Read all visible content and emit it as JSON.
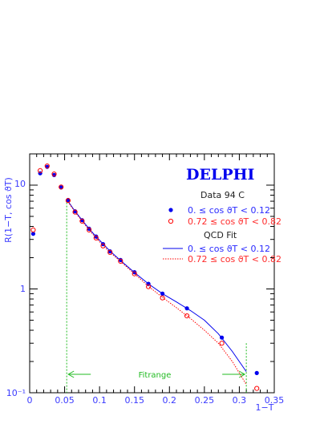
{
  "chart_data": {
    "type": "scatter",
    "title": "DELPHI",
    "xlabel": "1−T",
    "ylabel": "R(1−T, cos ϑT)",
    "xlim": [
      0,
      0.35
    ],
    "ylim": [
      0.1,
      20
    ],
    "y_scale": "log",
    "x_ticks": [
      "0",
      "0.05",
      "0.1",
      "0.15",
      "0.2",
      "0.25",
      "0.3",
      "0.35"
    ],
    "y_tick_labels": [
      "10⁻¹",
      "1",
      "10"
    ],
    "legend": {
      "data_heading": "Data 94 C",
      "fit_heading": "QCD Fit",
      "blue_label": "0.  ≤ cos ϑT < 0.12",
      "red_label": "0.72 ≤ cos ϑT < 0.82"
    },
    "fit_range": {
      "label": "Fitrange",
      "x_min": 0.053,
      "x_max": 0.31
    },
    "series": [
      {
        "name": "0.  ≤ cos ϑT < 0.12",
        "kind": "points",
        "marker": "filled-circle",
        "color": "#0000ee",
        "x": [
          0.005,
          0.015,
          0.025,
          0.035,
          0.045,
          0.055,
          0.065,
          0.075,
          0.085,
          0.095,
          0.105,
          0.115,
          0.13,
          0.15,
          0.17,
          0.19,
          0.225,
          0.275,
          0.325
        ],
        "y": [
          3.4,
          13.0,
          15.0,
          12.5,
          9.5,
          7.2,
          5.6,
          4.6,
          3.8,
          3.2,
          2.7,
          2.3,
          1.9,
          1.45,
          1.12,
          0.9,
          0.65,
          0.34,
          0.155
        ]
      },
      {
        "name": "0.72 ≤ cos ϑT < 0.82",
        "kind": "points",
        "marker": "open-circle",
        "color": "#ff0000",
        "x": [
          0.005,
          0.015,
          0.025,
          0.035,
          0.045,
          0.055,
          0.065,
          0.075,
          0.085,
          0.095,
          0.105,
          0.115,
          0.13,
          0.15,
          0.17,
          0.19,
          0.225,
          0.275,
          0.325
        ],
        "y": [
          3.7,
          13.8,
          15.3,
          12.8,
          9.6,
          7.1,
          5.5,
          4.5,
          3.7,
          3.1,
          2.6,
          2.25,
          1.85,
          1.4,
          1.05,
          0.82,
          0.55,
          0.3,
          0.11
        ]
      },
      {
        "name": "0.  ≤ cos ϑT < 0.12",
        "kind": "fit",
        "style": "solid",
        "color": "#0000ee",
        "x": [
          0.053,
          0.065,
          0.075,
          0.085,
          0.095,
          0.105,
          0.115,
          0.13,
          0.15,
          0.17,
          0.19,
          0.21,
          0.23,
          0.25,
          0.27,
          0.29,
          0.31
        ],
        "y": [
          7.3,
          5.6,
          4.6,
          3.8,
          3.2,
          2.72,
          2.32,
          1.88,
          1.44,
          1.12,
          0.9,
          0.75,
          0.62,
          0.5,
          0.37,
          0.25,
          0.16
        ]
      },
      {
        "name": "0.72 ≤ cos ϑT < 0.82",
        "kind": "fit",
        "style": "dotted",
        "color": "#ff0000",
        "x": [
          0.053,
          0.065,
          0.075,
          0.085,
          0.095,
          0.105,
          0.115,
          0.13,
          0.15,
          0.17,
          0.19,
          0.21,
          0.23,
          0.25,
          0.27,
          0.29,
          0.31
        ],
        "y": [
          7.2,
          5.5,
          4.5,
          3.7,
          3.1,
          2.62,
          2.25,
          1.84,
          1.4,
          1.06,
          0.83,
          0.66,
          0.52,
          0.4,
          0.3,
          0.2,
          0.12
        ]
      }
    ]
  }
}
